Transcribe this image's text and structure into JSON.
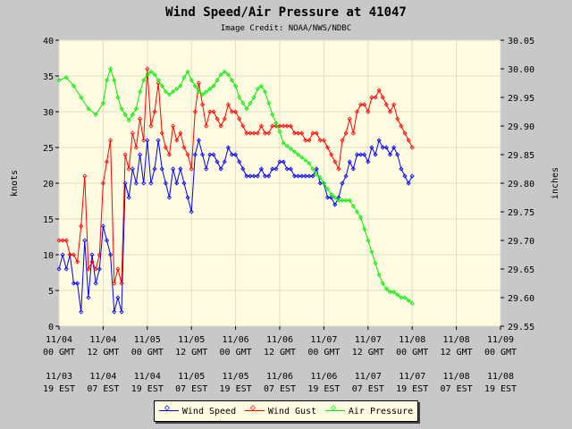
{
  "chart_data": {
    "type": "line",
    "title": "Wind Speed/Air Pressure at 41047",
    "subtitle": "Image Credit: NOAA/NWS/NDBC",
    "ylabel_left": "knots",
    "ylabel_right": "inches",
    "ylim_left": [
      0,
      40
    ],
    "ylim_right": [
      29.55,
      30.05
    ],
    "y_ticks_left": [
      "0",
      "5",
      "10",
      "15",
      "20",
      "25",
      "30",
      "35",
      "40"
    ],
    "y_ticks_right": [
      "29.55",
      "29.60",
      "29.65",
      "29.70",
      "29.75",
      "29.80",
      "29.85",
      "29.90",
      "29.95",
      "30.00",
      "30.05"
    ],
    "xlim_hours": [
      0,
      120
    ],
    "x_ticks": [
      {
        "gmt": [
          "11/04",
          "00 GMT"
        ],
        "est": [
          "11/03",
          "19 EST"
        ]
      },
      {
        "gmt": [
          "11/04",
          "12 GMT"
        ],
        "est": [
          "11/04",
          "07 EST"
        ]
      },
      {
        "gmt": [
          "11/05",
          "00 GMT"
        ],
        "est": [
          "11/04",
          "19 EST"
        ]
      },
      {
        "gmt": [
          "11/05",
          "12 GMT"
        ],
        "est": [
          "11/05",
          "07 EST"
        ]
      },
      {
        "gmt": [
          "11/06",
          "00 GMT"
        ],
        "est": [
          "11/05",
          "19 EST"
        ]
      },
      {
        "gmt": [
          "11/06",
          "12 GMT"
        ],
        "est": [
          "11/06",
          "07 EST"
        ]
      },
      {
        "gmt": [
          "11/07",
          "00 GMT"
        ],
        "est": [
          "11/06",
          "19 EST"
        ]
      },
      {
        "gmt": [
          "11/07",
          "12 GMT"
        ],
        "est": [
          "11/07",
          "07 EST"
        ]
      },
      {
        "gmt": [
          "11/08",
          "00 GMT"
        ],
        "est": [
          "11/07",
          "19 EST"
        ]
      },
      {
        "gmt": [
          "11/08",
          "12 GMT"
        ],
        "est": [
          "11/08",
          "07 EST"
        ]
      },
      {
        "gmt": [
          "11/09",
          "00 GMT"
        ],
        "est": [
          "11/08",
          "19 EST"
        ]
      }
    ],
    "grid": true,
    "legend_position": "bottom-center",
    "series": [
      {
        "name": "Wind Speed",
        "color": "#0000ff",
        "axis": "left",
        "points": [
          [
            0,
            8
          ],
          [
            1,
            10
          ],
          [
            2,
            8
          ],
          [
            3,
            10
          ],
          [
            4,
            6
          ],
          [
            5,
            6
          ],
          [
            6,
            2
          ],
          [
            7,
            12
          ],
          [
            8,
            4
          ],
          [
            9,
            10
          ],
          [
            10,
            6
          ],
          [
            11,
            8
          ],
          [
            12,
            14
          ],
          [
            13,
            12
          ],
          [
            14,
            10
          ],
          [
            15,
            2
          ],
          [
            16,
            4
          ],
          [
            17,
            2
          ],
          [
            18,
            20
          ],
          [
            19,
            18
          ],
          [
            20,
            22
          ],
          [
            21,
            20
          ],
          [
            22,
            24
          ],
          [
            23,
            20
          ],
          [
            24,
            26
          ],
          [
            25,
            20
          ],
          [
            26,
            22
          ],
          [
            27,
            26
          ],
          [
            28,
            22
          ],
          [
            29,
            20
          ],
          [
            30,
            18
          ],
          [
            31,
            22
          ],
          [
            32,
            20
          ],
          [
            33,
            22
          ],
          [
            34,
            20
          ],
          [
            35,
            18
          ],
          [
            36,
            16
          ],
          [
            37,
            24
          ],
          [
            38,
            26
          ],
          [
            39,
            24
          ],
          [
            40,
            22
          ],
          [
            41,
            24
          ],
          [
            42,
            24
          ],
          [
            43,
            23
          ],
          [
            44,
            22
          ],
          [
            45,
            23
          ],
          [
            46,
            25
          ],
          [
            47,
            24
          ],
          [
            48,
            24
          ],
          [
            49,
            23
          ],
          [
            50,
            22
          ],
          [
            51,
            21
          ],
          [
            52,
            21
          ],
          [
            53,
            21
          ],
          [
            54,
            21
          ],
          [
            55,
            22
          ],
          [
            56,
            21
          ],
          [
            57,
            21
          ],
          [
            58,
            22
          ],
          [
            59,
            22
          ],
          [
            60,
            23
          ],
          [
            61,
            23
          ],
          [
            62,
            22
          ],
          [
            63,
            22
          ],
          [
            64,
            21
          ],
          [
            65,
            21
          ],
          [
            66,
            21
          ],
          [
            67,
            21
          ],
          [
            68,
            21
          ],
          [
            69,
            21
          ],
          [
            70,
            22
          ],
          [
            71,
            20
          ],
          [
            72,
            20
          ],
          [
            73,
            18
          ],
          [
            74,
            18
          ],
          [
            75,
            17
          ],
          [
            76,
            18
          ],
          [
            77,
            20
          ],
          [
            78,
            21
          ],
          [
            79,
            23
          ],
          [
            80,
            22
          ],
          [
            81,
            24
          ],
          [
            82,
            24
          ],
          [
            83,
            24
          ],
          [
            84,
            23
          ],
          [
            85,
            25
          ],
          [
            86,
            24
          ],
          [
            87,
            26
          ],
          [
            88,
            25
          ],
          [
            89,
            25
          ],
          [
            90,
            24
          ],
          [
            91,
            25
          ],
          [
            92,
            24
          ],
          [
            93,
            22
          ],
          [
            94,
            21
          ],
          [
            95,
            20
          ],
          [
            96,
            21
          ]
        ]
      },
      {
        "name": "Wind Gust",
        "color": "#ff0000",
        "axis": "left",
        "points": [
          [
            0,
            12
          ],
          [
            1,
            12
          ],
          [
            2,
            12
          ],
          [
            3,
            10
          ],
          [
            4,
            10
          ],
          [
            5,
            9
          ],
          [
            6,
            14
          ],
          [
            7,
            21
          ],
          [
            8,
            8
          ],
          [
            9,
            9
          ],
          [
            10,
            8
          ],
          [
            11,
            10
          ],
          [
            12,
            20
          ],
          [
            13,
            23
          ],
          [
            14,
            26
          ],
          [
            15,
            6
          ],
          [
            16,
            8
          ],
          [
            17,
            6
          ],
          [
            18,
            24
          ],
          [
            19,
            22
          ],
          [
            20,
            27
          ],
          [
            21,
            25
          ],
          [
            22,
            29
          ],
          [
            23,
            26
          ],
          [
            24,
            36
          ],
          [
            25,
            28
          ],
          [
            26,
            30
          ],
          [
            27,
            34
          ],
          [
            28,
            27
          ],
          [
            29,
            25
          ],
          [
            30,
            24
          ],
          [
            31,
            28
          ],
          [
            32,
            26
          ],
          [
            33,
            27
          ],
          [
            34,
            25
          ],
          [
            35,
            24
          ],
          [
            36,
            22
          ],
          [
            37,
            30
          ],
          [
            38,
            34
          ],
          [
            39,
            31
          ],
          [
            40,
            28
          ],
          [
            41,
            30
          ],
          [
            42,
            30
          ],
          [
            43,
            29
          ],
          [
            44,
            28
          ],
          [
            45,
            29
          ],
          [
            46,
            31
          ],
          [
            47,
            30
          ],
          [
            48,
            30
          ],
          [
            49,
            29
          ],
          [
            50,
            28
          ],
          [
            51,
            27
          ],
          [
            52,
            27
          ],
          [
            53,
            27
          ],
          [
            54,
            27
          ],
          [
            55,
            28
          ],
          [
            56,
            27
          ],
          [
            57,
            27
          ],
          [
            58,
            28
          ],
          [
            59,
            28
          ],
          [
            60,
            28
          ],
          [
            61,
            28
          ],
          [
            62,
            28
          ],
          [
            63,
            28
          ],
          [
            64,
            27
          ],
          [
            65,
            27
          ],
          [
            66,
            27
          ],
          [
            67,
            26
          ],
          [
            68,
            26
          ],
          [
            69,
            27
          ],
          [
            70,
            27
          ],
          [
            71,
            26
          ],
          [
            72,
            26
          ],
          [
            73,
            25
          ],
          [
            74,
            24
          ],
          [
            75,
            23
          ],
          [
            76,
            22
          ],
          [
            77,
            26
          ],
          [
            78,
            27
          ],
          [
            79,
            29
          ],
          [
            80,
            27
          ],
          [
            81,
            30
          ],
          [
            82,
            31
          ],
          [
            83,
            31
          ],
          [
            84,
            30
          ],
          [
            85,
            32
          ],
          [
            86,
            32
          ],
          [
            87,
            33
          ],
          [
            88,
            32
          ],
          [
            89,
            31
          ],
          [
            90,
            30
          ],
          [
            91,
            31
          ],
          [
            92,
            29
          ],
          [
            93,
            28
          ],
          [
            94,
            27
          ],
          [
            95,
            26
          ],
          [
            96,
            25
          ]
        ]
      },
      {
        "name": "Air Pressure",
        "color": "#00ee00",
        "axis": "right",
        "points": [
          [
            0,
            29.98
          ],
          [
            2,
            29.985
          ],
          [
            4,
            29.97
          ],
          [
            6,
            29.95
          ],
          [
            8,
            29.93
          ],
          [
            10,
            29.92
          ],
          [
            12,
            29.94
          ],
          [
            13,
            29.98
          ],
          [
            14,
            30.0
          ],
          [
            15,
            29.98
          ],
          [
            16,
            29.95
          ],
          [
            17,
            29.93
          ],
          [
            18,
            29.92
          ],
          [
            19,
            29.91
          ],
          [
            20,
            29.92
          ],
          [
            21,
            29.93
          ],
          [
            22,
            29.96
          ],
          [
            23,
            29.98
          ],
          [
            24,
            29.99
          ],
          [
            25,
            29.995
          ],
          [
            26,
            29.99
          ],
          [
            27,
            29.98
          ],
          [
            28,
            29.97
          ],
          [
            29,
            29.96
          ],
          [
            30,
            29.955
          ],
          [
            31,
            29.96
          ],
          [
            32,
            29.965
          ],
          [
            33,
            29.97
          ],
          [
            34,
            29.985
          ],
          [
            35,
            29.995
          ],
          [
            36,
            29.98
          ],
          [
            37,
            29.97
          ],
          [
            38,
            29.96
          ],
          [
            39,
            29.955
          ],
          [
            40,
            29.96
          ],
          [
            41,
            29.965
          ],
          [
            42,
            29.97
          ],
          [
            43,
            29.98
          ],
          [
            44,
            29.99
          ],
          [
            45,
            29.995
          ],
          [
            46,
            29.99
          ],
          [
            47,
            29.98
          ],
          [
            48,
            29.97
          ],
          [
            49,
            29.95
          ],
          [
            50,
            29.94
          ],
          [
            51,
            29.93
          ],
          [
            52,
            29.94
          ],
          [
            53,
            29.95
          ],
          [
            54,
            29.965
          ],
          [
            55,
            29.97
          ],
          [
            56,
            29.96
          ],
          [
            57,
            29.94
          ],
          [
            58,
            29.92
          ],
          [
            59,
            29.905
          ],
          [
            60,
            29.89
          ],
          [
            61,
            29.87
          ],
          [
            62,
            29.865
          ],
          [
            63,
            29.86
          ],
          [
            64,
            29.855
          ],
          [
            65,
            29.85
          ],
          [
            66,
            29.845
          ],
          [
            67,
            29.84
          ],
          [
            68,
            29.835
          ],
          [
            69,
            29.825
          ],
          [
            70,
            29.815
          ],
          [
            71,
            29.81
          ],
          [
            72,
            29.8
          ],
          [
            73,
            29.79
          ],
          [
            74,
            29.78
          ],
          [
            75,
            29.775
          ],
          [
            76,
            29.77
          ],
          [
            77,
            29.77
          ],
          [
            78,
            29.77
          ],
          [
            79,
            29.77
          ],
          [
            80,
            29.76
          ],
          [
            81,
            29.75
          ],
          [
            82,
            29.74
          ],
          [
            83,
            29.72
          ],
          [
            84,
            29.7
          ],
          [
            85,
            29.68
          ],
          [
            86,
            29.66
          ],
          [
            87,
            29.64
          ],
          [
            88,
            29.625
          ],
          [
            89,
            29.615
          ],
          [
            90,
            29.61
          ],
          [
            91,
            29.61
          ],
          [
            92,
            29.605
          ],
          [
            93,
            29.6
          ],
          [
            94,
            29.6
          ],
          [
            95,
            29.595
          ],
          [
            96,
            29.59
          ]
        ]
      }
    ]
  }
}
